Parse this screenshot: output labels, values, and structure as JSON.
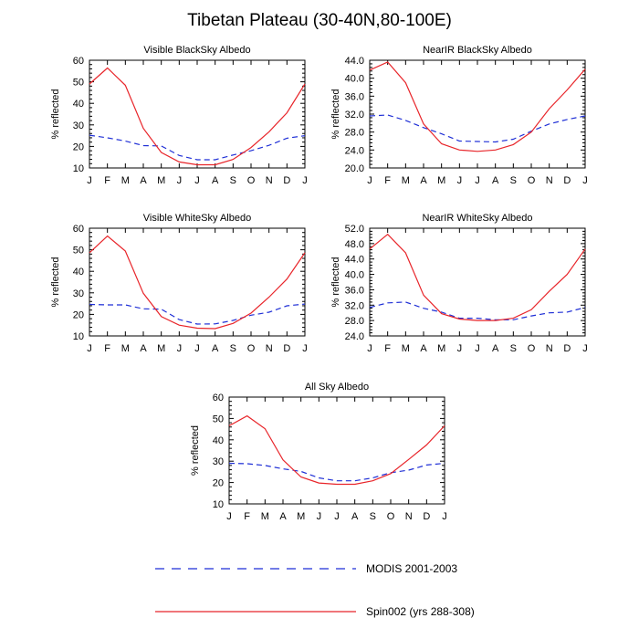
{
  "figure": {
    "title": "Tibetan Plateau (30-40N,80-100E)",
    "legend": {
      "placement": "bottom",
      "entries": [
        {
          "label": "MODIS 2001-2003",
          "color": "#1f2fd6",
          "style": "dashed"
        },
        {
          "label": "Spin002 (yrs 288-308)",
          "color": "#e8252a",
          "style": "solid"
        }
      ]
    }
  },
  "chart_data": [
    {
      "type": "line",
      "title": "Visible BlackSky Albedo",
      "ylabel": "% reflected",
      "categories": [
        "J",
        "F",
        "M",
        "A",
        "M",
        "J",
        "J",
        "A",
        "S",
        "O",
        "N",
        "D",
        "J"
      ],
      "ylim": [
        10,
        60
      ],
      "yticks": [
        "10",
        "20",
        "30",
        "40",
        "50",
        "60"
      ],
      "series": [
        {
          "name": "MODIS 2001-2003",
          "values": [
            25.2,
            24.0,
            22.5,
            20.4,
            20.2,
            15.8,
            13.8,
            13.8,
            16.0,
            18.0,
            20.5,
            23.8,
            25.0
          ]
        },
        {
          "name": "Spin002 (yrs 288-308)",
          "values": [
            49.0,
            56.4,
            48.4,
            28.4,
            17.2,
            12.8,
            11.5,
            11.5,
            14.0,
            19.5,
            26.8,
            35.6,
            49.0
          ]
        }
      ]
    },
    {
      "type": "line",
      "title": "NearIR BlackSky Albedo",
      "ylabel": "% reflected",
      "categories": [
        "J",
        "F",
        "M",
        "A",
        "M",
        "J",
        "J",
        "A",
        "S",
        "O",
        "N",
        "D",
        "J"
      ],
      "ylim": [
        20,
        44
      ],
      "yticks": [
        "20.0",
        "24.0",
        "28.0",
        "32.0",
        "36.0",
        "40.0",
        "44.0"
      ],
      "series": [
        {
          "name": "MODIS 2001-2003",
          "values": [
            31.6,
            31.8,
            30.6,
            29.0,
            27.6,
            26.0,
            25.9,
            25.8,
            26.4,
            28.2,
            29.8,
            30.8,
            31.6
          ]
        },
        {
          "name": "Spin002 (yrs 288-308)",
          "values": [
            41.8,
            43.6,
            39.0,
            29.8,
            25.4,
            24.0,
            23.7,
            24.0,
            25.2,
            28.0,
            33.2,
            37.4,
            42.0
          ]
        }
      ]
    },
    {
      "type": "line",
      "title": "Visible WhiteSky Albedo",
      "ylabel": "% reflected",
      "categories": [
        "J",
        "F",
        "M",
        "A",
        "M",
        "J",
        "J",
        "A",
        "S",
        "O",
        "N",
        "D",
        "J"
      ],
      "ylim": [
        10,
        60
      ],
      "yticks": [
        "10",
        "20",
        "30",
        "40",
        "50",
        "60"
      ],
      "series": [
        {
          "name": "MODIS 2001-2003",
          "values": [
            24.6,
            24.4,
            24.4,
            22.6,
            22.4,
            17.6,
            15.5,
            15.6,
            17.2,
            19.6,
            21.0,
            24.0,
            24.8
          ]
        },
        {
          "name": "Spin002 (yrs 288-308)",
          "values": [
            48.6,
            56.4,
            49.4,
            29.8,
            19.0,
            15.0,
            13.6,
            13.4,
            15.8,
            20.6,
            28.0,
            36.4,
            48.6
          ]
        }
      ]
    },
    {
      "type": "line",
      "title": "NearIR WhiteSky Albedo",
      "ylabel": "% reflected",
      "categories": [
        "J",
        "F",
        "M",
        "A",
        "M",
        "J",
        "J",
        "A",
        "S",
        "O",
        "N",
        "D",
        "J"
      ],
      "ylim": [
        24,
        52
      ],
      "yticks": [
        "24.0",
        "28.0",
        "32.0",
        "36.0",
        "40.0",
        "44.0",
        "48.0",
        "52.0"
      ],
      "series": [
        {
          "name": "MODIS 2001-2003",
          "values": [
            31.4,
            32.6,
            32.8,
            31.2,
            30.2,
            28.6,
            28.6,
            28.2,
            28.2,
            29.2,
            30.0,
            30.2,
            31.4
          ]
        },
        {
          "name": "Spin002 (yrs 288-308)",
          "values": [
            46.6,
            50.4,
            45.6,
            34.6,
            29.8,
            28.4,
            28.0,
            28.0,
            28.6,
            30.8,
            35.6,
            40.0,
            46.6
          ]
        }
      ]
    },
    {
      "type": "line",
      "title": "All Sky Albedo",
      "ylabel": "% reflected",
      "categories": [
        "J",
        "F",
        "M",
        "A",
        "M",
        "J",
        "J",
        "A",
        "S",
        "O",
        "N",
        "D",
        "J"
      ],
      "ylim": [
        10,
        60
      ],
      "yticks": [
        "10",
        "20",
        "30",
        "40",
        "50",
        "60"
      ],
      "series": [
        {
          "name": "MODIS 2001-2003",
          "values": [
            29.0,
            28.8,
            28.0,
            26.4,
            25.2,
            22.2,
            20.8,
            20.8,
            22.2,
            24.6,
            25.8,
            28.2,
            29.0
          ]
        },
        {
          "name": "Spin002 (yrs 288-308)",
          "values": [
            46.6,
            51.2,
            45.2,
            30.6,
            22.6,
            19.8,
            19.2,
            19.2,
            20.8,
            24.2,
            30.8,
            37.6,
            46.6
          ]
        }
      ]
    }
  ]
}
